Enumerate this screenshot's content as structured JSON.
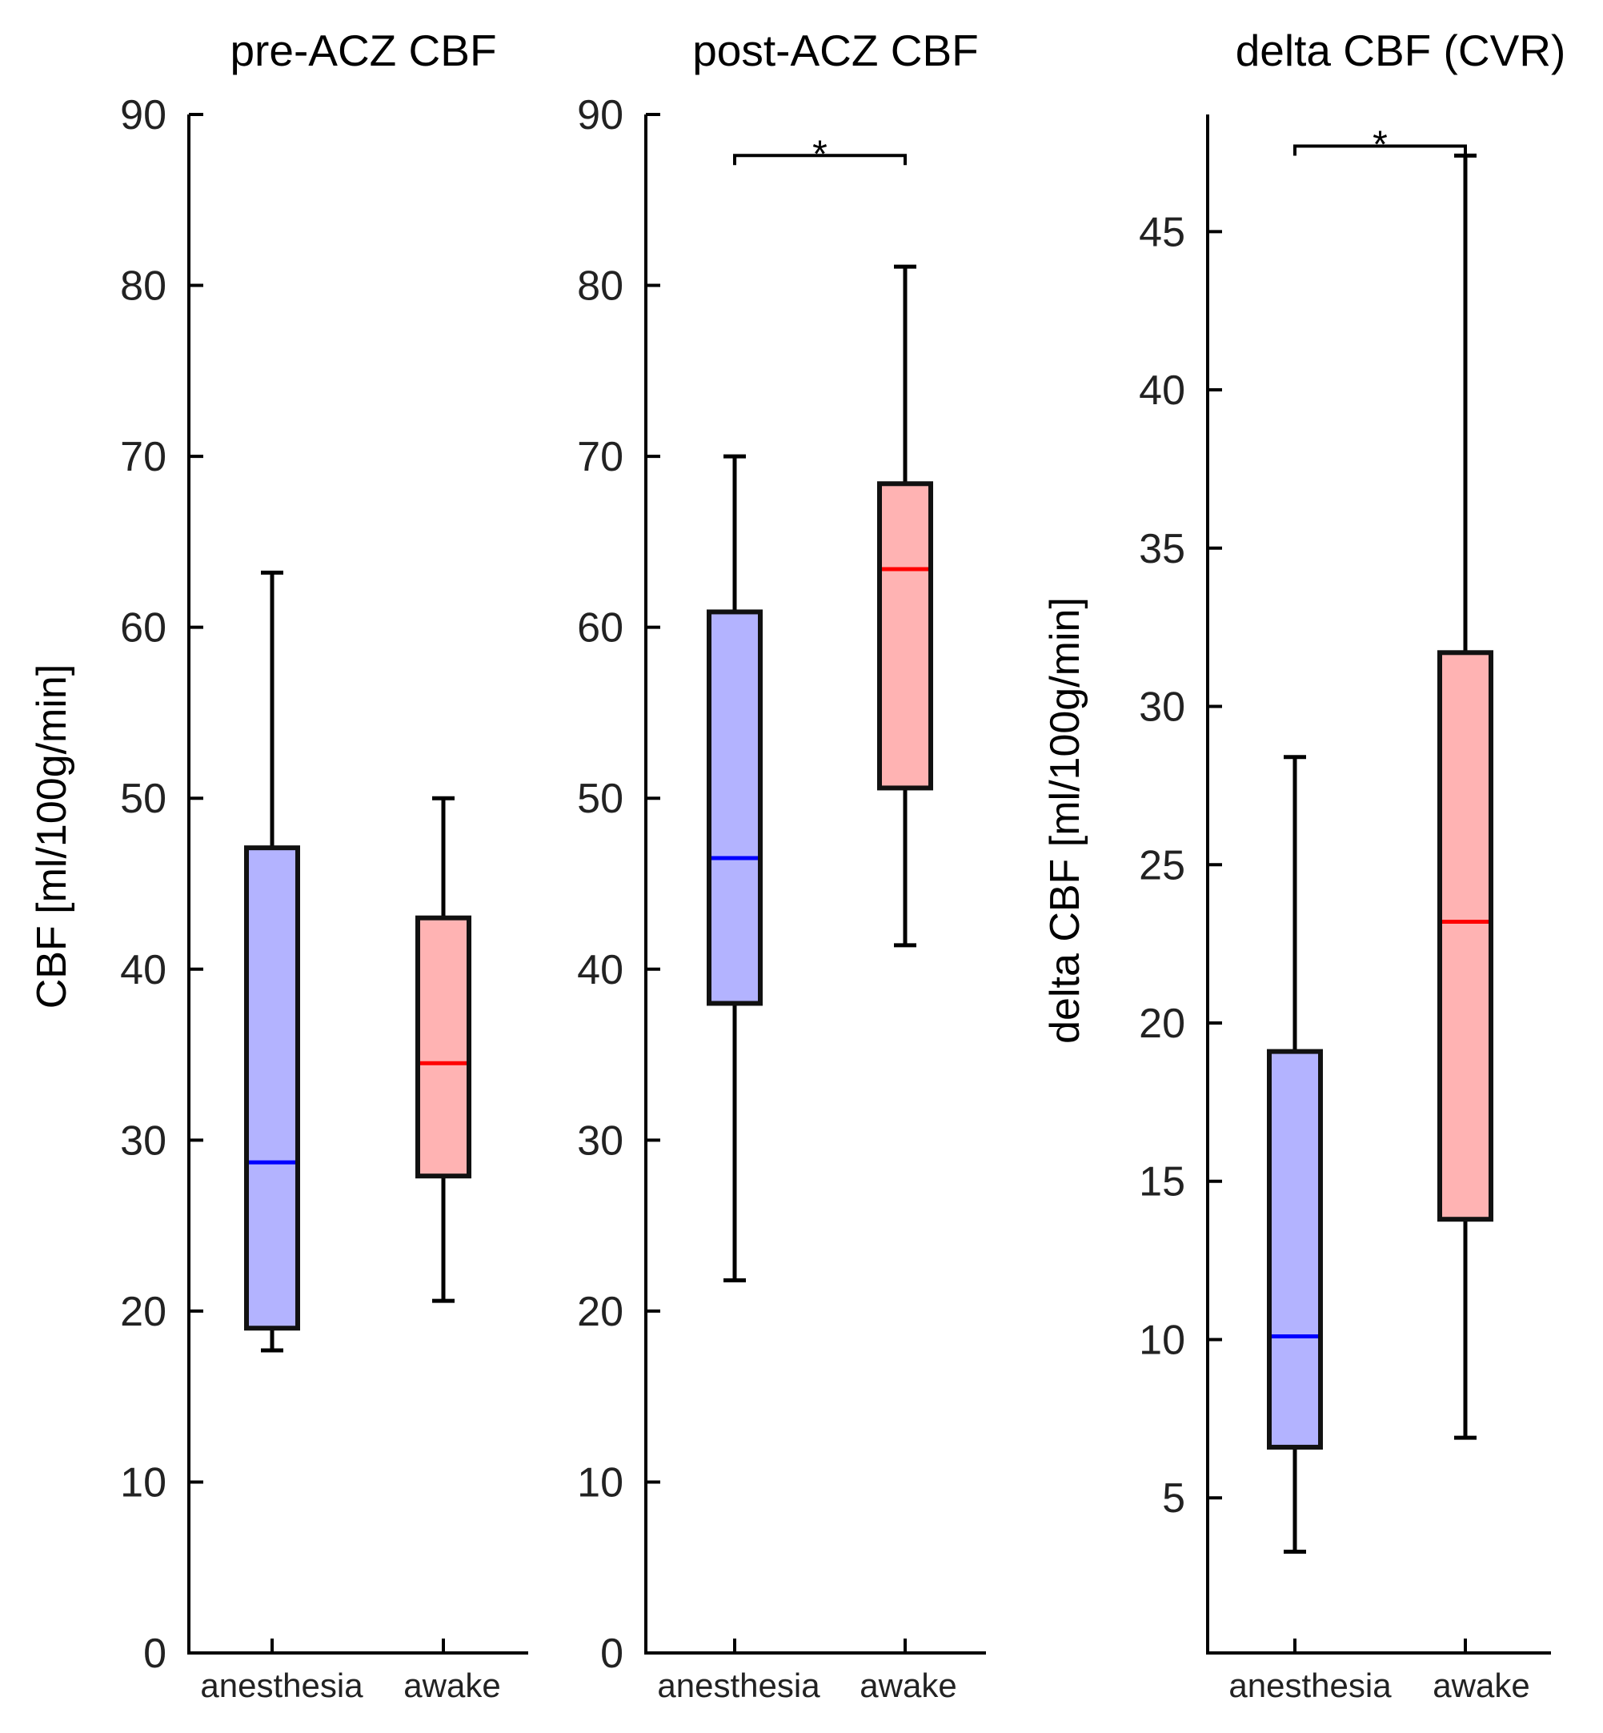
{
  "chart_data": [
    {
      "type": "box",
      "title": "pre-ACZ CBF",
      "ylabel": "CBF [ml/100g/min]",
      "xlabel": "",
      "ylim": [
        0,
        90
      ],
      "yticks": [
        0,
        10,
        20,
        30,
        40,
        50,
        60,
        70,
        80,
        90
      ],
      "categories": [
        "anesthesia",
        "awake"
      ],
      "boxes": [
        {
          "name": "anesthesia",
          "min": 17.7,
          "q1": 19.0,
          "median": 28.7,
          "q3": 47.1,
          "max": 63.2,
          "fill": "#b3b3ff",
          "median_color": "#0000ff"
        },
        {
          "name": "awake",
          "min": 20.6,
          "q1": 27.9,
          "median": 34.5,
          "q3": 43.0,
          "max": 50.0,
          "fill": "#ffb3b3",
          "median_color": "#ff0000"
        }
      ],
      "significance": null
    },
    {
      "type": "box",
      "title": "post-ACZ CBF",
      "ylabel": "",
      "xlabel": "",
      "ylim": [
        0,
        90
      ],
      "yticks": [
        0,
        10,
        20,
        30,
        40,
        50,
        60,
        70,
        80,
        90
      ],
      "categories": [
        "anesthesia",
        "awake"
      ],
      "boxes": [
        {
          "name": "anesthesia",
          "min": 21.8,
          "q1": 38.0,
          "median": 46.5,
          "q3": 60.9,
          "max": 70.0,
          "fill": "#b3b3ff",
          "median_color": "#0000ff"
        },
        {
          "name": "awake",
          "min": 41.4,
          "q1": 50.6,
          "median": 63.4,
          "q3": 68.4,
          "max": 81.1,
          "fill": "#ffb3b3",
          "median_color": "#ff0000"
        }
      ],
      "significance": {
        "label": "*",
        "value": 87.6
      }
    },
    {
      "type": "box",
      "title": "delta CBF (CVR)",
      "ylabel": "delta CBF [ml/100g/min]",
      "xlabel": "",
      "ylim": [
        0.1,
        48.7
      ],
      "yticks": [
        5,
        10,
        15,
        20,
        25,
        30,
        35,
        40,
        45
      ],
      "categories": [
        "anesthesia",
        "awake"
      ],
      "boxes": [
        {
          "name": "anesthesia",
          "min": 3.3,
          "q1": 6.6,
          "median": 10.1,
          "q3": 19.1,
          "max": 28.4,
          "fill": "#b3b3ff",
          "median_color": "#0000ff"
        },
        {
          "name": "awake",
          "min": 6.9,
          "q1": 13.8,
          "median": 23.2,
          "q3": 31.7,
          "max": 47.4,
          "fill": "#ffb3b3",
          "median_color": "#ff0000"
        }
      ],
      "significance": {
        "label": "*",
        "value": 47.7
      }
    }
  ]
}
